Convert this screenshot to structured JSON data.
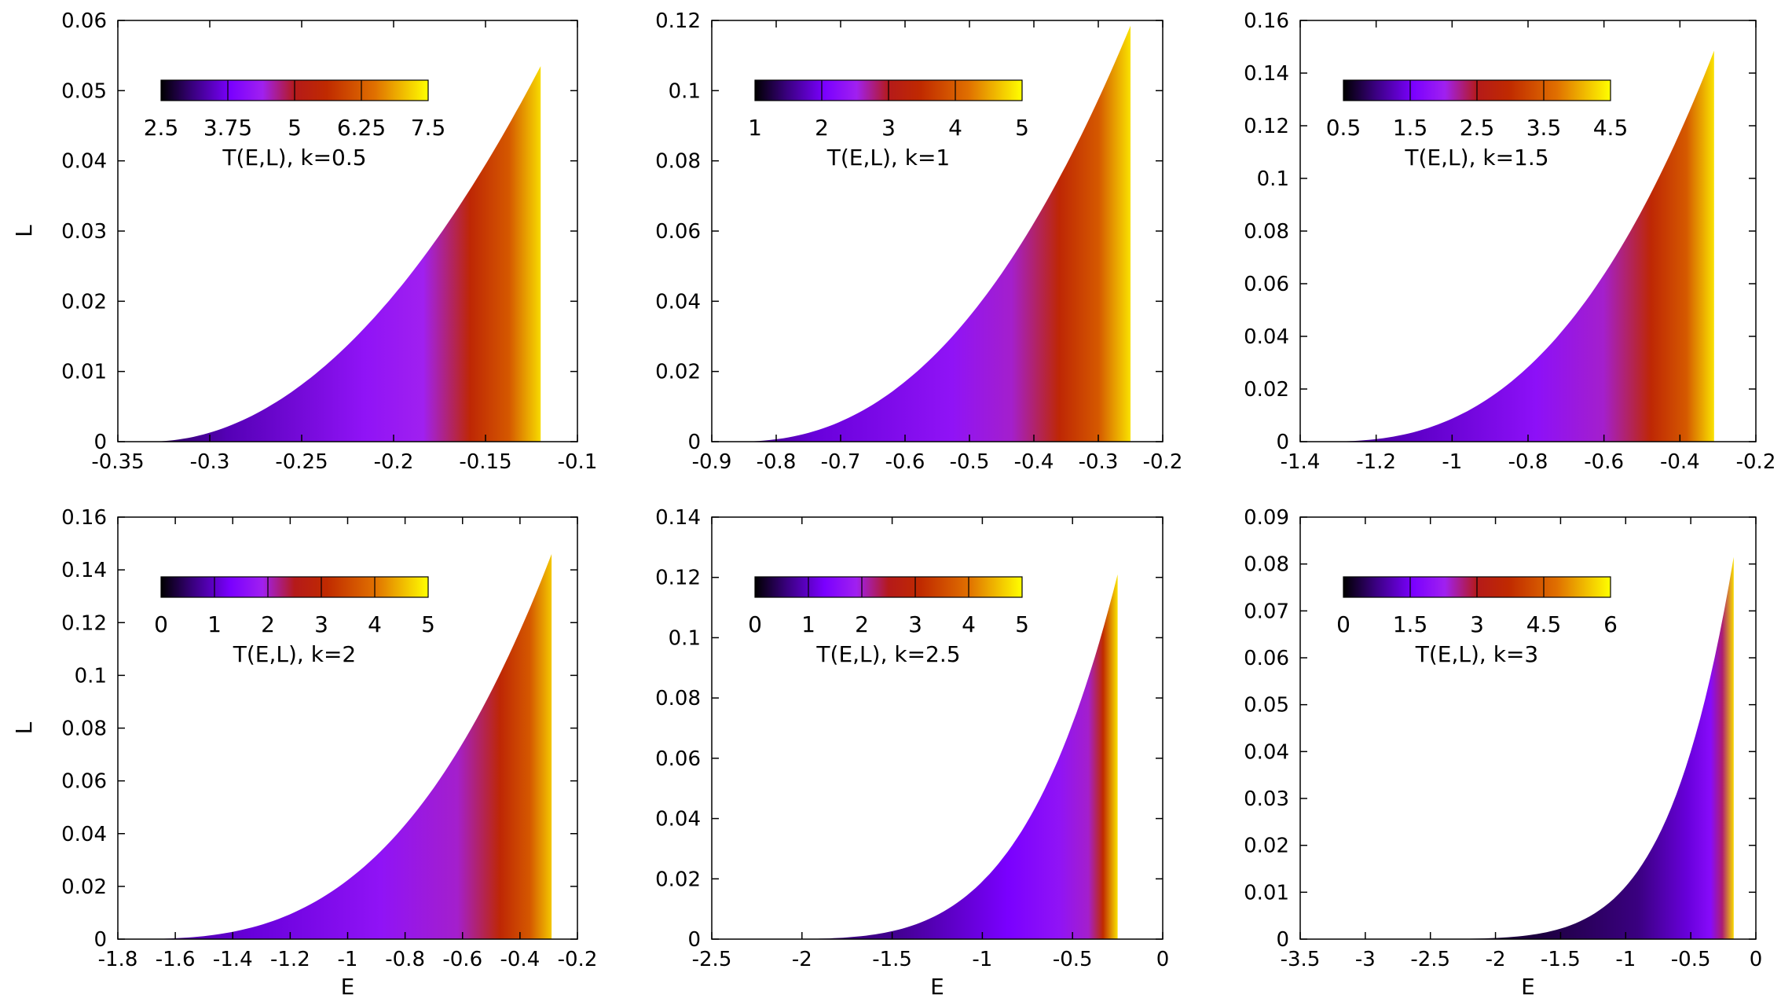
{
  "figure": {
    "description_labels": {
      "x_axis": "E",
      "y_axis": "L"
    }
  },
  "chart_data": [
    {
      "type": "heatmap",
      "k": 0.5,
      "colorbar_label": "T(E,L), k=0.5",
      "colorbar_ticks": [
        "2.5",
        "3.75",
        "5",
        "6.25",
        "7.5"
      ],
      "colorbar_range": [
        2.5,
        7.5
      ],
      "xlim": [
        -0.35,
        -0.1
      ],
      "ylim": [
        0,
        0.06
      ],
      "xticks": [
        -0.35,
        -0.3,
        -0.25,
        -0.2,
        -0.15,
        -0.1
      ],
      "yticks": [
        0,
        0.01,
        0.02,
        0.03,
        0.04,
        0.05,
        0.06
      ],
      "xtick_labels": [
        "-0.35",
        "-0.3",
        "-0.25",
        "-0.2",
        "-0.15",
        "-0.1"
      ],
      "ytick_labels": [
        "0",
        "0.01",
        "0.02",
        "0.03",
        "0.04",
        "0.05",
        "0.06"
      ],
      "xlabel": "",
      "ylabel": "L",
      "region": {
        "e_min": -0.333,
        "e_max": -0.12,
        "l_max": 0.0535,
        "curve_exponent": 2.0
      },
      "color_profile": [
        [
          0,
          0.08
        ],
        [
          0.2,
          0.18
        ],
        [
          0.55,
          0.33
        ],
        [
          0.7,
          0.38
        ],
        [
          0.82,
          0.6
        ],
        [
          0.92,
          0.74
        ],
        [
          1.0,
          0.95
        ]
      ]
    },
    {
      "type": "heatmap",
      "k": 1,
      "colorbar_label": "T(E,L), k=1",
      "colorbar_ticks": [
        "1",
        "2",
        "3",
        "4",
        "5"
      ],
      "colorbar_range": [
        1,
        5
      ],
      "xlim": [
        -0.9,
        -0.2
      ],
      "ylim": [
        0,
        0.12
      ],
      "xticks": [
        -0.9,
        -0.8,
        -0.7,
        -0.6,
        -0.5,
        -0.4,
        -0.3,
        -0.2
      ],
      "yticks": [
        0,
        0.02,
        0.04,
        0.06,
        0.08,
        0.1,
        0.12
      ],
      "xtick_labels": [
        "-0.9",
        "-0.8",
        "-0.7",
        "-0.6",
        "-0.5",
        "-0.4",
        "-0.3",
        "-0.2"
      ],
      "ytick_labels": [
        "0",
        "0.02",
        "0.04",
        "0.06",
        "0.08",
        "0.1",
        "0.12"
      ],
      "xlabel": "",
      "ylabel": "",
      "region": {
        "e_min": -0.865,
        "e_max": -0.25,
        "l_max": 0.1185,
        "curve_exponent": 2.3
      },
      "color_profile": [
        [
          0,
          0.1
        ],
        [
          0.2,
          0.22
        ],
        [
          0.55,
          0.33
        ],
        [
          0.7,
          0.4
        ],
        [
          0.82,
          0.6
        ],
        [
          0.92,
          0.74
        ],
        [
          1.0,
          0.96
        ]
      ]
    },
    {
      "type": "heatmap",
      "k": 1.5,
      "colorbar_label": "T(E,L), k=1.5",
      "colorbar_ticks": [
        "0.5",
        "1.5",
        "2.5",
        "3.5",
        "4.5"
      ],
      "colorbar_range": [
        0.5,
        4.5
      ],
      "xlim": [
        -1.4,
        -0.2
      ],
      "ylim": [
        0,
        0.16
      ],
      "xticks": [
        -1.4,
        -1.2,
        -1,
        -0.8,
        -0.6,
        -0.4,
        -0.2
      ],
      "yticks": [
        0,
        0.02,
        0.04,
        0.06,
        0.08,
        0.1,
        0.12,
        0.14,
        0.16
      ],
      "xtick_labels": [
        "-1.4",
        "-1.2",
        "-1",
        "-0.8",
        "-0.6",
        "-0.4",
        "-0.2"
      ],
      "ytick_labels": [
        "0",
        "0.02",
        "0.04",
        "0.06",
        "0.08",
        "0.1",
        "0.12",
        "0.14",
        "0.16"
      ],
      "xlabel": "",
      "ylabel": "",
      "region": {
        "e_min": -1.35,
        "e_max": -0.31,
        "l_max": 0.1485,
        "curve_exponent": 2.6
      },
      "color_profile": [
        [
          0,
          0.12
        ],
        [
          0.25,
          0.2
        ],
        [
          0.55,
          0.32
        ],
        [
          0.72,
          0.4
        ],
        [
          0.84,
          0.6
        ],
        [
          0.93,
          0.74
        ],
        [
          1.0,
          0.96
        ]
      ]
    },
    {
      "type": "heatmap",
      "k": 2,
      "colorbar_label": "T(E,L), k=2",
      "colorbar_ticks": [
        "0",
        "1",
        "2",
        "3",
        "4",
        "5"
      ],
      "colorbar_range": [
        0,
        5
      ],
      "xlim": [
        -1.8,
        -0.2
      ],
      "ylim": [
        0,
        0.16
      ],
      "xticks": [
        -1.8,
        -1.6,
        -1.4,
        -1.2,
        -1,
        -0.8,
        -0.6,
        -0.4,
        -0.2
      ],
      "yticks": [
        0,
        0.02,
        0.04,
        0.06,
        0.08,
        0.1,
        0.12,
        0.14,
        0.16
      ],
      "xtick_labels": [
        "-1.8",
        "-1.6",
        "-1.4",
        "-1.2",
        "-1",
        "-0.8",
        "-0.6",
        "-0.4",
        "-0.2"
      ],
      "ytick_labels": [
        "0",
        "0.02",
        "0.04",
        "0.06",
        "0.08",
        "0.1",
        "0.12",
        "0.14",
        "0.16"
      ],
      "xlabel": "E",
      "ylabel": "L",
      "region": {
        "e_min": -1.78,
        "e_max": -0.29,
        "l_max": 0.146,
        "curve_exponent": 2.9
      },
      "color_profile": [
        [
          0,
          0.12
        ],
        [
          0.3,
          0.22
        ],
        [
          0.6,
          0.33
        ],
        [
          0.78,
          0.4
        ],
        [
          0.88,
          0.6
        ],
        [
          0.95,
          0.74
        ],
        [
          1.0,
          0.92
        ]
      ]
    },
    {
      "type": "heatmap",
      "k": 2.5,
      "colorbar_label": "T(E,L), k=2.5",
      "colorbar_ticks": [
        "0",
        "1",
        "2",
        "3",
        "4",
        "5"
      ],
      "colorbar_range": [
        0,
        5
      ],
      "xlim": [
        -2.5,
        0
      ],
      "ylim": [
        0,
        0.14
      ],
      "xticks": [
        -2.5,
        -2,
        -1.5,
        -1,
        -0.5,
        0
      ],
      "yticks": [
        0,
        0.02,
        0.04,
        0.06,
        0.08,
        0.1,
        0.12,
        0.14
      ],
      "xtick_labels": [
        "-2.5",
        "-2",
        "-1.5",
        "-1",
        "-0.5",
        "0"
      ],
      "ytick_labels": [
        "0",
        "0.02",
        "0.04",
        "0.06",
        "0.08",
        "0.1",
        "0.12",
        "0.14"
      ],
      "xlabel": "E",
      "ylabel": "",
      "region": {
        "e_min": -2.28,
        "e_max": -0.25,
        "l_max": 0.121,
        "curve_exponent": 4.0
      },
      "color_profile": [
        [
          0,
          0.08
        ],
        [
          0.4,
          0.14
        ],
        [
          0.7,
          0.26
        ],
        [
          0.84,
          0.33
        ],
        [
          0.92,
          0.4
        ],
        [
          0.96,
          0.62
        ],
        [
          1.0,
          0.96
        ]
      ]
    },
    {
      "type": "heatmap",
      "k": 3,
      "colorbar_label": "T(E,L), k=3",
      "colorbar_ticks": [
        "0",
        "1.5",
        "3",
        "4.5",
        "6"
      ],
      "colorbar_range": [
        0,
        6
      ],
      "xlim": [
        -3.5,
        0
      ],
      "ylim": [
        0,
        0.09
      ],
      "xticks": [
        -3.5,
        -3,
        -2.5,
        -2,
        -1.5,
        -1,
        -0.5,
        0
      ],
      "yticks": [
        0,
        0.01,
        0.02,
        0.03,
        0.04,
        0.05,
        0.06,
        0.07,
        0.08,
        0.09
      ],
      "xtick_labels": [
        "-3.5",
        "-3",
        "-2.5",
        "-2",
        "-1.5",
        "-1",
        "-0.5",
        "0"
      ],
      "ytick_labels": [
        "0",
        "0.01",
        "0.02",
        "0.03",
        "0.04",
        "0.05",
        "0.06",
        "0.07",
        "0.08",
        "0.09"
      ],
      "xlabel": "E",
      "ylabel": "",
      "region": {
        "e_min": -3.12,
        "e_max": -0.17,
        "l_max": 0.0815,
        "curve_exponent": 6.0
      },
      "color_profile": [
        [
          0,
          0.03
        ],
        [
          0.5,
          0.06
        ],
        [
          0.75,
          0.12
        ],
        [
          0.88,
          0.22
        ],
        [
          0.94,
          0.3
        ],
        [
          0.97,
          0.45
        ],
        [
          1.0,
          0.95
        ]
      ]
    }
  ]
}
